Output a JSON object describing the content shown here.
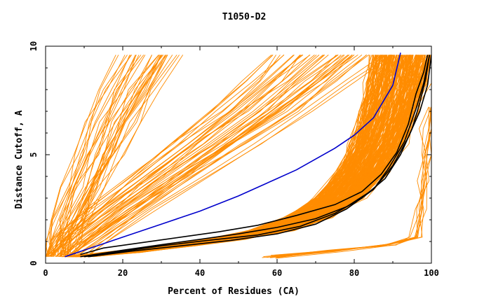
{
  "chart_data": {
    "type": "line",
    "title": "T1050-D2",
    "xlabel": "Percent of Residues (CA)",
    "ylabel": "Distance Cutoff, A",
    "xlim": [
      0,
      100
    ],
    "ylim": [
      0,
      10
    ],
    "x_ticks": [
      "0",
      "20",
      "40",
      "60",
      "80",
      "100"
    ],
    "y_ticks": [
      "0",
      "5",
      "10"
    ],
    "grid": false,
    "colors": {
      "many_models": "#ff8c00",
      "highlighted": "#000000",
      "best": "#0000cc"
    },
    "best_curve": {
      "points": [
        [
          5,
          0.3
        ],
        [
          10,
          0.6
        ],
        [
          15,
          0.9
        ],
        [
          20,
          1.2
        ],
        [
          25,
          1.5
        ],
        [
          30,
          1.8
        ],
        [
          35,
          2.1
        ],
        [
          40,
          2.4
        ],
        [
          45,
          2.75
        ],
        [
          50,
          3.1
        ],
        [
          55,
          3.5
        ],
        [
          60,
          3.9
        ],
        [
          65,
          4.3
        ],
        [
          70,
          4.8
        ],
        [
          75,
          5.3
        ],
        [
          80,
          5.9
        ],
        [
          85,
          6.7
        ],
        [
          90,
          8.2
        ],
        [
          92,
          9.7
        ]
      ]
    },
    "highlighted_curves": [
      {
        "points": [
          [
            9,
            0.4
          ],
          [
            15,
            0.7
          ],
          [
            25,
            0.95
          ],
          [
            35,
            1.2
          ],
          [
            45,
            1.45
          ],
          [
            55,
            1.75
          ],
          [
            65,
            2.2
          ],
          [
            75,
            2.7
          ],
          [
            82,
            3.3
          ],
          [
            87,
            4.1
          ],
          [
            91,
            5.1
          ],
          [
            94,
            6.4
          ],
          [
            96,
            7.8
          ],
          [
            98,
            8.8
          ],
          [
            99,
            9.6
          ]
        ]
      },
      {
        "points": [
          [
            9,
            0.3
          ],
          [
            20,
            0.6
          ],
          [
            30,
            0.85
          ],
          [
            40,
            1.1
          ],
          [
            50,
            1.35
          ],
          [
            60,
            1.65
          ],
          [
            70,
            2.05
          ],
          [
            78,
            2.6
          ],
          [
            85,
            3.4
          ],
          [
            89,
            4.4
          ],
          [
            93,
            5.6
          ],
          [
            96,
            7.1
          ],
          [
            98,
            8.3
          ],
          [
            99.5,
            9.6
          ]
        ]
      },
      {
        "points": [
          [
            10,
            0.3
          ],
          [
            20,
            0.55
          ],
          [
            30,
            0.8
          ],
          [
            42,
            1.05
          ],
          [
            55,
            1.3
          ],
          [
            66,
            1.7
          ],
          [
            75,
            2.3
          ],
          [
            82,
            3.0
          ],
          [
            88,
            3.9
          ],
          [
            92,
            5.0
          ],
          [
            95,
            6.2
          ],
          [
            97,
            7.4
          ],
          [
            98.5,
            8.5
          ],
          [
            99.5,
            9.6
          ]
        ]
      },
      {
        "points": [
          [
            11,
            0.3
          ],
          [
            22,
            0.55
          ],
          [
            35,
            0.8
          ],
          [
            48,
            1.05
          ],
          [
            60,
            1.35
          ],
          [
            70,
            1.8
          ],
          [
            78,
            2.5
          ],
          [
            85,
            3.4
          ],
          [
            90,
            4.5
          ],
          [
            94,
            5.8
          ],
          [
            97,
            7.0
          ],
          [
            99,
            8.2
          ],
          [
            100,
            9.6
          ]
        ]
      }
    ],
    "series_bundles": [
      {
        "name": "",
        "count": 34,
        "base": [
          [
            3,
            0.3
          ],
          [
            4,
            1
          ],
          [
            6,
            2
          ],
          [
            9,
            3.5
          ],
          [
            13,
            5
          ],
          [
            17,
            6.5
          ],
          [
            21,
            8
          ],
          [
            26,
            9.6
          ]
        ],
        "x_spread": 10
      },
      {
        "name": "",
        "count": 45,
        "base": [
          [
            4,
            0.3
          ],
          [
            10,
            1.2
          ],
          [
            20,
            2.5
          ],
          [
            32,
            4
          ],
          [
            44,
            5.5
          ],
          [
            56,
            7
          ],
          [
            66,
            8.4
          ],
          [
            74,
            9.6
          ]
        ],
        "x_spread": 16
      },
      {
        "name": "",
        "count": 260,
        "base": [
          [
            8,
            0.3
          ],
          [
            20,
            0.5
          ],
          [
            34,
            0.8
          ],
          [
            46,
            1.1
          ],
          [
            58,
            1.5
          ],
          [
            68,
            2.1
          ],
          [
            76,
            3.0
          ],
          [
            82,
            4.2
          ],
          [
            86,
            5.5
          ],
          [
            89,
            7.0
          ],
          [
            91,
            8.3
          ],
          [
            92.5,
            9.6
          ]
        ],
        "x_spread": 8
      },
      {
        "name": "",
        "count": 10,
        "base": [
          [
            96,
            1.2
          ],
          [
            97,
            2.5
          ],
          [
            98,
            3.8
          ],
          [
            98.8,
            5
          ],
          [
            99.3,
            6.2
          ],
          [
            99.8,
            7.2
          ]
        ],
        "x_spread": 1.2,
        "tail_from": [
          [
            58,
            0.3
          ],
          [
            75,
            0.6
          ],
          [
            89,
            0.85
          ]
        ]
      }
    ]
  }
}
